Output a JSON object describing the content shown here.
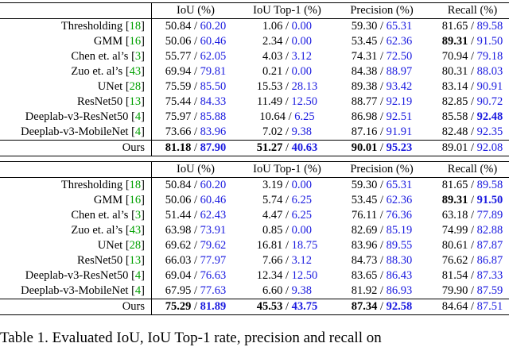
{
  "headers": [
    "",
    "IoU (%)",
    "IoU Top-1 (%)",
    "Precision (%)",
    "Recall (%)"
  ],
  "table1": [
    {
      "method": "Thresholding",
      "ref": "18",
      "iou": [
        "50.84",
        "60.20"
      ],
      "top1": [
        "1.06",
        "0.00"
      ],
      "prec": [
        "59.30",
        "65.31"
      ],
      "rec": [
        "81.65",
        "89.58"
      ],
      "bold": []
    },
    {
      "method": "GMM",
      "ref": "16",
      "iou": [
        "50.06",
        "60.46"
      ],
      "top1": [
        "2.34",
        "0.00"
      ],
      "prec": [
        "53.45",
        "62.36"
      ],
      "rec": [
        "89.31",
        "91.50"
      ],
      "bold": [
        "rec0"
      ]
    },
    {
      "method": "Chen et. al’s",
      "ref": "3",
      "iou": [
        "55.77",
        "62.05"
      ],
      "top1": [
        "4.03",
        "3.12"
      ],
      "prec": [
        "74.31",
        "72.50"
      ],
      "rec": [
        "70.94",
        "79.18"
      ],
      "bold": []
    },
    {
      "method": "Zuo et. al’s",
      "ref": "43",
      "iou": [
        "69.94",
        "79.81"
      ],
      "top1": [
        "0.21",
        "0.00"
      ],
      "prec": [
        "84.38",
        "88.97"
      ],
      "rec": [
        "80.31",
        "88.03"
      ],
      "bold": []
    },
    {
      "method": "UNet",
      "ref": "28",
      "iou": [
        "75.59",
        "85.50"
      ],
      "top1": [
        "15.53",
        "28.13"
      ],
      "prec": [
        "89.38",
        "93.42"
      ],
      "rec": [
        "83.14",
        "90.91"
      ],
      "bold": []
    },
    {
      "method": "ResNet50",
      "ref": "13",
      "iou": [
        "75.44",
        "84.33"
      ],
      "top1": [
        "11.49",
        "12.50"
      ],
      "prec": [
        "88.77",
        "92.19"
      ],
      "rec": [
        "82.85",
        "90.72"
      ],
      "bold": []
    },
    {
      "method": "Deeplab-v3-ResNet50",
      "ref": "4",
      "iou": [
        "75.97",
        "85.88"
      ],
      "top1": [
        "10.64",
        "6.25"
      ],
      "prec": [
        "86.98",
        "92.51"
      ],
      "rec": [
        "85.58",
        "92.48"
      ],
      "bold": [
        "rec1"
      ]
    },
    {
      "method": "Deeplab-v3-MobileNet",
      "ref": "4",
      "iou": [
        "73.66",
        "83.96"
      ],
      "top1": [
        "7.02",
        "9.38"
      ],
      "prec": [
        "87.16",
        "91.91"
      ],
      "rec": [
        "82.48",
        "92.35"
      ],
      "bold": []
    },
    {
      "method": "Ours",
      "ref": "",
      "iou": [
        "81.18",
        "87.90"
      ],
      "top1": [
        "51.27",
        "40.63"
      ],
      "prec": [
        "90.01",
        "95.23"
      ],
      "rec": [
        "89.01",
        "92.08"
      ],
      "bold": [
        "iou0",
        "iou1",
        "top10",
        "top11",
        "prec0",
        "prec1"
      ]
    }
  ],
  "table2": [
    {
      "method": "Thresholding",
      "ref": "18",
      "iou": [
        "50.84",
        "60.20"
      ],
      "top1": [
        "3.19",
        "0.00"
      ],
      "prec": [
        "59.30",
        "65.31"
      ],
      "rec": [
        "81.65",
        "89.58"
      ],
      "bold": []
    },
    {
      "method": "GMM",
      "ref": "16",
      "iou": [
        "50.06",
        "60.46"
      ],
      "top1": [
        "5.74",
        "6.25"
      ],
      "prec": [
        "53.45",
        "62.36"
      ],
      "rec": [
        "89.31",
        "91.50"
      ],
      "bold": [
        "rec0",
        "rec1"
      ]
    },
    {
      "method": "Chen et. al’s",
      "ref": "3",
      "iou": [
        "51.44",
        "62.43"
      ],
      "top1": [
        "4.47",
        "6.25"
      ],
      "prec": [
        "76.11",
        "76.36"
      ],
      "rec": [
        "63.18",
        "77.89"
      ],
      "bold": []
    },
    {
      "method": "Zuo et. al’s",
      "ref": "43",
      "iou": [
        "63.98",
        "73.91"
      ],
      "top1": [
        "0.85",
        "0.00"
      ],
      "prec": [
        "82.69",
        "85.19"
      ],
      "rec": [
        "74.99",
        "82.88"
      ],
      "bold": []
    },
    {
      "method": "UNet",
      "ref": "28",
      "iou": [
        "69.62",
        "79.62"
      ],
      "top1": [
        "16.81",
        "18.75"
      ],
      "prec": [
        "83.96",
        "89.55"
      ],
      "rec": [
        "80.61",
        "87.87"
      ],
      "bold": []
    },
    {
      "method": "ResNet50",
      "ref": "13",
      "iou": [
        "66.03",
        "77.97"
      ],
      "top1": [
        "7.66",
        "3.12"
      ],
      "prec": [
        "84.73",
        "88.30"
      ],
      "rec": [
        "76.62",
        "86.87"
      ],
      "bold": []
    },
    {
      "method": "Deeplab-v3-ResNet50",
      "ref": "4",
      "iou": [
        "69.04",
        "76.63"
      ],
      "top1": [
        "12.34",
        "12.50"
      ],
      "prec": [
        "83.65",
        "86.43"
      ],
      "rec": [
        "81.54",
        "87.33"
      ],
      "bold": []
    },
    {
      "method": "Deeplab-v3-MobileNet",
      "ref": "4",
      "iou": [
        "67.95",
        "77.63"
      ],
      "top1": [
        "6.60",
        "9.38"
      ],
      "prec": [
        "81.92",
        "86.93"
      ],
      "rec": [
        "79.90",
        "87.59"
      ],
      "bold": []
    },
    {
      "method": "Ours",
      "ref": "",
      "iou": [
        "75.29",
        "81.89"
      ],
      "top1": [
        "45.53",
        "43.75"
      ],
      "prec": [
        "87.34",
        "92.58"
      ],
      "rec": [
        "84.64",
        "87.51"
      ],
      "bold": [
        "iou0",
        "iou1",
        "top10",
        "top11",
        "prec0",
        "prec1"
      ]
    }
  ],
  "caption": "Table 1. Evaluated IoU, IoU Top-1 rate, precision and recall on",
  "colors": {
    "link_blue": "#1a1adf",
    "citation_green": "#00a000"
  }
}
